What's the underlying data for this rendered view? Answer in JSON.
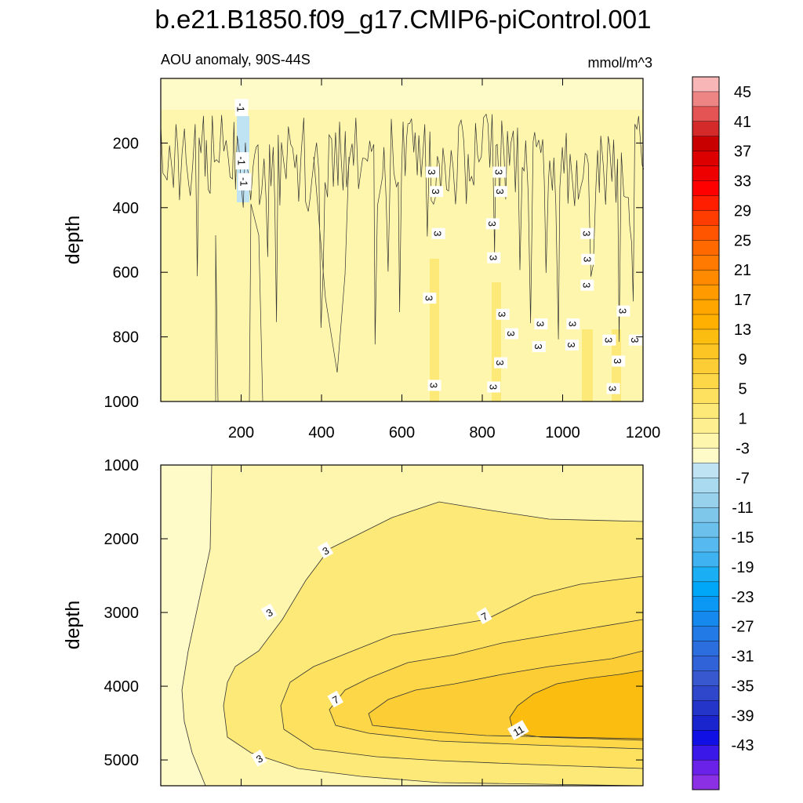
{
  "title": "b.e21.B1850.f09_g17.CMIP6-piControl.001",
  "left_subtitle": "AOU anomaly, 90S-44S",
  "right_subtitle": "mmol/m^3",
  "colorbar": {
    "labels": [
      "45",
      "41",
      "37",
      "33",
      "29",
      "25",
      "21",
      "17",
      "13",
      "9",
      "5",
      "1",
      "-3",
      "-7",
      "-11",
      "-15",
      "-19",
      "-23",
      "-27",
      "-31",
      "-35",
      "-39",
      "-43"
    ],
    "colors_top_to_bottom": [
      "#f8b6b6",
      "#ee8585",
      "#e45454",
      "#d42a2a",
      "#c80000",
      "#dc0000",
      "#ee0000",
      "#ff0000",
      "#ff1f00",
      "#ff3d00",
      "#ff5500",
      "#ff6900",
      "#ff7a00",
      "#ff8a00",
      "#ff9a00",
      "#ffa600",
      "#ffb000",
      "#fbbd10",
      "#fcc523",
      "#fccd35",
      "#fdd747",
      "#fde15f",
      "#fde977",
      "#feef91",
      "#fff6ad",
      "#fffbc8",
      "#bfe3f2",
      "#aadaef",
      "#97d1ec",
      "#7ec7ea",
      "#6bc1ec",
      "#56b9ef",
      "#3fb3f2",
      "#1aaef5",
      "#00a6f8",
      "#0a98f4",
      "#1589ee",
      "#227ae6",
      "#2c6ede",
      "#3163d8",
      "#3858cf",
      "#2e47cb",
      "#2436c9",
      "#1b25cd",
      "#1010e4",
      "#3a18e8",
      "#6a22e8",
      "#8c30e6"
    ]
  },
  "chart_data": [
    {
      "type": "contour",
      "panel": "top",
      "ylabel": "depth",
      "xlabel": "",
      "xlim": [
        0,
        1200
      ],
      "ylim": [
        1000,
        0
      ],
      "xticks": [
        "200",
        "400",
        "600",
        "800",
        "1000",
        "1200"
      ],
      "yticks": [
        "200",
        "400",
        "600",
        "800",
        "1000"
      ],
      "contour_labels": [
        {
          "text": "-1",
          "x": 200,
          "y": 90
        },
        {
          "text": "-1",
          "x": 202,
          "y": 255
        },
        {
          "text": "-1",
          "x": 208,
          "y": 320
        },
        {
          "text": "3",
          "x": 675,
          "y": 290
        },
        {
          "text": "3",
          "x": 685,
          "y": 350
        },
        {
          "text": "3",
          "x": 690,
          "y": 480
        },
        {
          "text": "3",
          "x": 668,
          "y": 680
        },
        {
          "text": "3",
          "x": 680,
          "y": 950
        },
        {
          "text": "3",
          "x": 842,
          "y": 290
        },
        {
          "text": "3",
          "x": 845,
          "y": 350
        },
        {
          "text": "3",
          "x": 825,
          "y": 450
        },
        {
          "text": "3",
          "x": 828,
          "y": 555
        },
        {
          "text": "3",
          "x": 850,
          "y": 730
        },
        {
          "text": "3",
          "x": 872,
          "y": 790
        },
        {
          "text": "3",
          "x": 945,
          "y": 760
        },
        {
          "text": "3",
          "x": 940,
          "y": 830
        },
        {
          "text": "3",
          "x": 845,
          "y": 880
        },
        {
          "text": "3",
          "x": 828,
          "y": 955
        },
        {
          "text": "3",
          "x": 1060,
          "y": 480
        },
        {
          "text": "3",
          "x": 1062,
          "y": 560
        },
        {
          "text": "3",
          "x": 1060,
          "y": 640
        },
        {
          "text": "3",
          "x": 1025,
          "y": 760
        },
        {
          "text": "3",
          "x": 1022,
          "y": 825
        },
        {
          "text": "3",
          "x": 1150,
          "y": 720
        },
        {
          "text": "3",
          "x": 1115,
          "y": 810
        },
        {
          "text": "3",
          "x": 1138,
          "y": 875
        },
        {
          "text": "3",
          "x": 1125,
          "y": 960
        },
        {
          "text": "3",
          "x": 1180,
          "y": 810
        }
      ]
    },
    {
      "type": "contour",
      "panel": "bottom",
      "ylabel": "depth",
      "xlabel": "",
      "xlim": [
        0,
        1200
      ],
      "ylim": [
        5350,
        1000
      ],
      "xticks": [],
      "yticks": [
        "1000",
        "2000",
        "3000",
        "4000",
        "5000"
      ],
      "contour_labels": [
        {
          "text": "3",
          "x": 410,
          "y": 2160
        },
        {
          "text": "3",
          "x": 270,
          "y": 3000
        },
        {
          "text": "3",
          "x": 245,
          "y": 4980
        },
        {
          "text": "7",
          "x": 805,
          "y": 3050
        },
        {
          "text": "7",
          "x": 435,
          "y": 4180
        },
        {
          "text": "11",
          "x": 890,
          "y": 4600
        }
      ]
    }
  ]
}
